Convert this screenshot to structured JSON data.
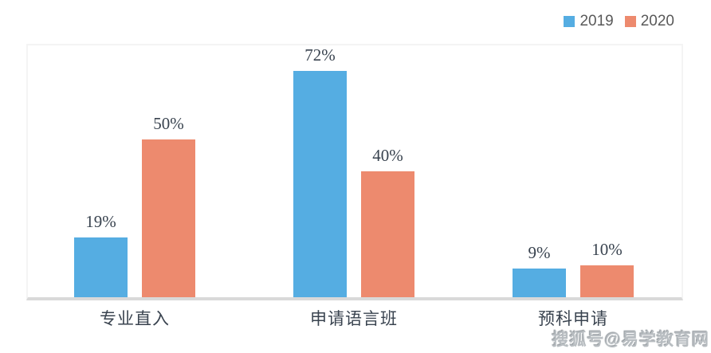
{
  "legend": {
    "position": "top-right"
  },
  "watermark": "搜狐号@易学教育网",
  "colors": {
    "series_2019": "#55ade2",
    "series_2020": "#ed8a6e",
    "label_text": "#39434f",
    "legend_text": "#595959",
    "axis_line": "#d9d9d9",
    "plot_border": "#f4f4f4",
    "watermark_text": "#b8bdc1"
  },
  "chart_data": {
    "type": "bar",
    "title": "",
    "xlabel": "",
    "ylabel": "",
    "categories": [
      "专业直入",
      "申请语言班",
      "预科申请"
    ],
    "series": [
      {
        "name": "2019",
        "color": "#55ade2",
        "values": [
          19,
          72,
          9
        ]
      },
      {
        "name": "2020",
        "color": "#ed8a6e",
        "values": [
          50,
          40,
          10
        ]
      }
    ],
    "value_suffix": "%",
    "data_labels": [
      "19%",
      "50%",
      "72%",
      "40%",
      "9%",
      "10%"
    ],
    "ylim": [
      0,
      80
    ],
    "grid": false,
    "axis_ticks_visible": false,
    "legend_position": "top-right"
  }
}
